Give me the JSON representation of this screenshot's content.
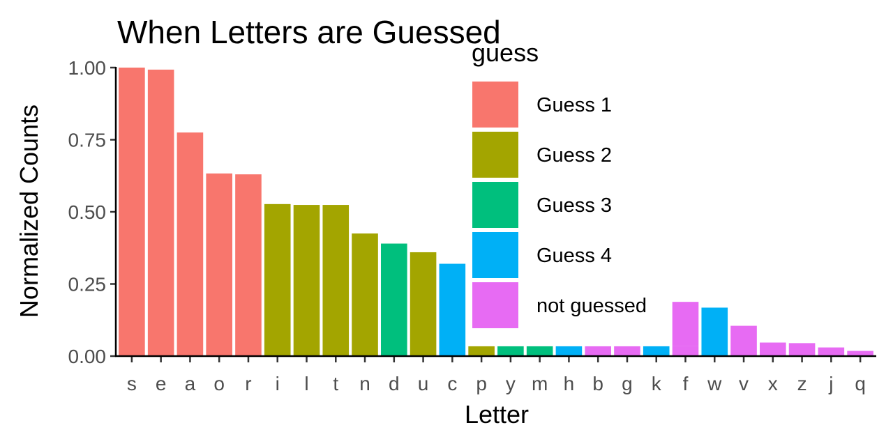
{
  "chart_data": {
    "type": "bar",
    "title": "When Letters are Guessed",
    "xlabel": "Letter",
    "ylabel": "Normalized Counts",
    "ylim": [
      0,
      1
    ],
    "yticks": [
      "0.00",
      "0.25",
      "0.50",
      "0.75",
      "1.00"
    ],
    "legend_title": "guess",
    "legend_position": "top-right inside",
    "grid": false,
    "groups": [
      {
        "name": "Guess 1",
        "color": "#F8766D"
      },
      {
        "name": "Guess 2",
        "color": "#A3A500"
      },
      {
        "name": "Guess 3",
        "color": "#00BF7D"
      },
      {
        "name": "Guess 4",
        "color": "#00B0F6"
      },
      {
        "name": "not guessed",
        "color": "#E76BF3"
      }
    ],
    "categories": [
      "s",
      "e",
      "a",
      "o",
      "r",
      "i",
      "l",
      "t",
      "n",
      "d",
      "u",
      "c",
      "p",
      "y",
      "m",
      "h",
      "b",
      "g",
      "k",
      "f",
      "w",
      "v",
      "x",
      "z",
      "j",
      "q"
    ],
    "bars": [
      {
        "letter": "s",
        "segments": [
          {
            "group": "Guess 1",
            "value": 1.0
          }
        ]
      },
      {
        "letter": "e",
        "segments": [
          {
            "group": "Guess 1",
            "value": 0.993
          }
        ]
      },
      {
        "letter": "a",
        "segments": [
          {
            "group": "Guess 1",
            "value": 0.775
          }
        ]
      },
      {
        "letter": "o",
        "segments": [
          {
            "group": "Guess 1",
            "value": 0.633
          }
        ]
      },
      {
        "letter": "r",
        "segments": [
          {
            "group": "Guess 1",
            "value": 0.63
          }
        ]
      },
      {
        "letter": "i",
        "segments": [
          {
            "group": "Guess 2",
            "value": 0.527
          }
        ]
      },
      {
        "letter": "l",
        "segments": [
          {
            "group": "Guess 2",
            "value": 0.524
          }
        ]
      },
      {
        "letter": "t",
        "segments": [
          {
            "group": "Guess 2",
            "value": 0.524
          }
        ]
      },
      {
        "letter": "n",
        "segments": [
          {
            "group": "Guess 2",
            "value": 0.425
          }
        ]
      },
      {
        "letter": "d",
        "segments": [
          {
            "group": "Guess 3",
            "value": 0.39
          }
        ]
      },
      {
        "letter": "u",
        "segments": [
          {
            "group": "Guess 2",
            "value": 0.36
          }
        ]
      },
      {
        "letter": "c",
        "segments": [
          {
            "group": "Guess 4",
            "value": 0.32
          }
        ]
      },
      {
        "letter": "p",
        "segments": [
          {
            "group": "Guess 2",
            "value": 0.034
          }
        ]
      },
      {
        "letter": "y",
        "segments": [
          {
            "group": "Guess 3",
            "value": 0.034
          }
        ]
      },
      {
        "letter": "m",
        "segments": [
          {
            "group": "Guess 3",
            "value": 0.034
          }
        ]
      },
      {
        "letter": "h",
        "segments": [
          {
            "group": "Guess 4",
            "value": 0.034
          }
        ]
      },
      {
        "letter": "b",
        "segments": [
          {
            "group": "not guessed",
            "value": 0.034
          }
        ]
      },
      {
        "letter": "g",
        "segments": [
          {
            "group": "not guessed",
            "value": 0.034
          }
        ]
      },
      {
        "letter": "k",
        "segments": [
          {
            "group": "Guess 4",
            "value": 0.034
          }
        ]
      },
      {
        "letter": "f",
        "segments": [
          {
            "group": "not guessed",
            "value": 0.034
          },
          {
            "group": "not guessed",
            "value": 0.154
          }
        ]
      },
      {
        "letter": "w",
        "segments": [
          {
            "group": "Guess 4",
            "value": 0.168
          }
        ]
      },
      {
        "letter": "v",
        "segments": [
          {
            "group": "not guessed",
            "value": 0.105
          }
        ]
      },
      {
        "letter": "x",
        "segments": [
          {
            "group": "not guessed",
            "value": 0.047
          }
        ]
      },
      {
        "letter": "z",
        "segments": [
          {
            "group": "not guessed",
            "value": 0.045
          }
        ]
      },
      {
        "letter": "j",
        "segments": [
          {
            "group": "not guessed",
            "value": 0.03
          }
        ]
      },
      {
        "letter": "q",
        "segments": [
          {
            "group": "not guessed",
            "value": 0.018
          }
        ]
      }
    ]
  }
}
